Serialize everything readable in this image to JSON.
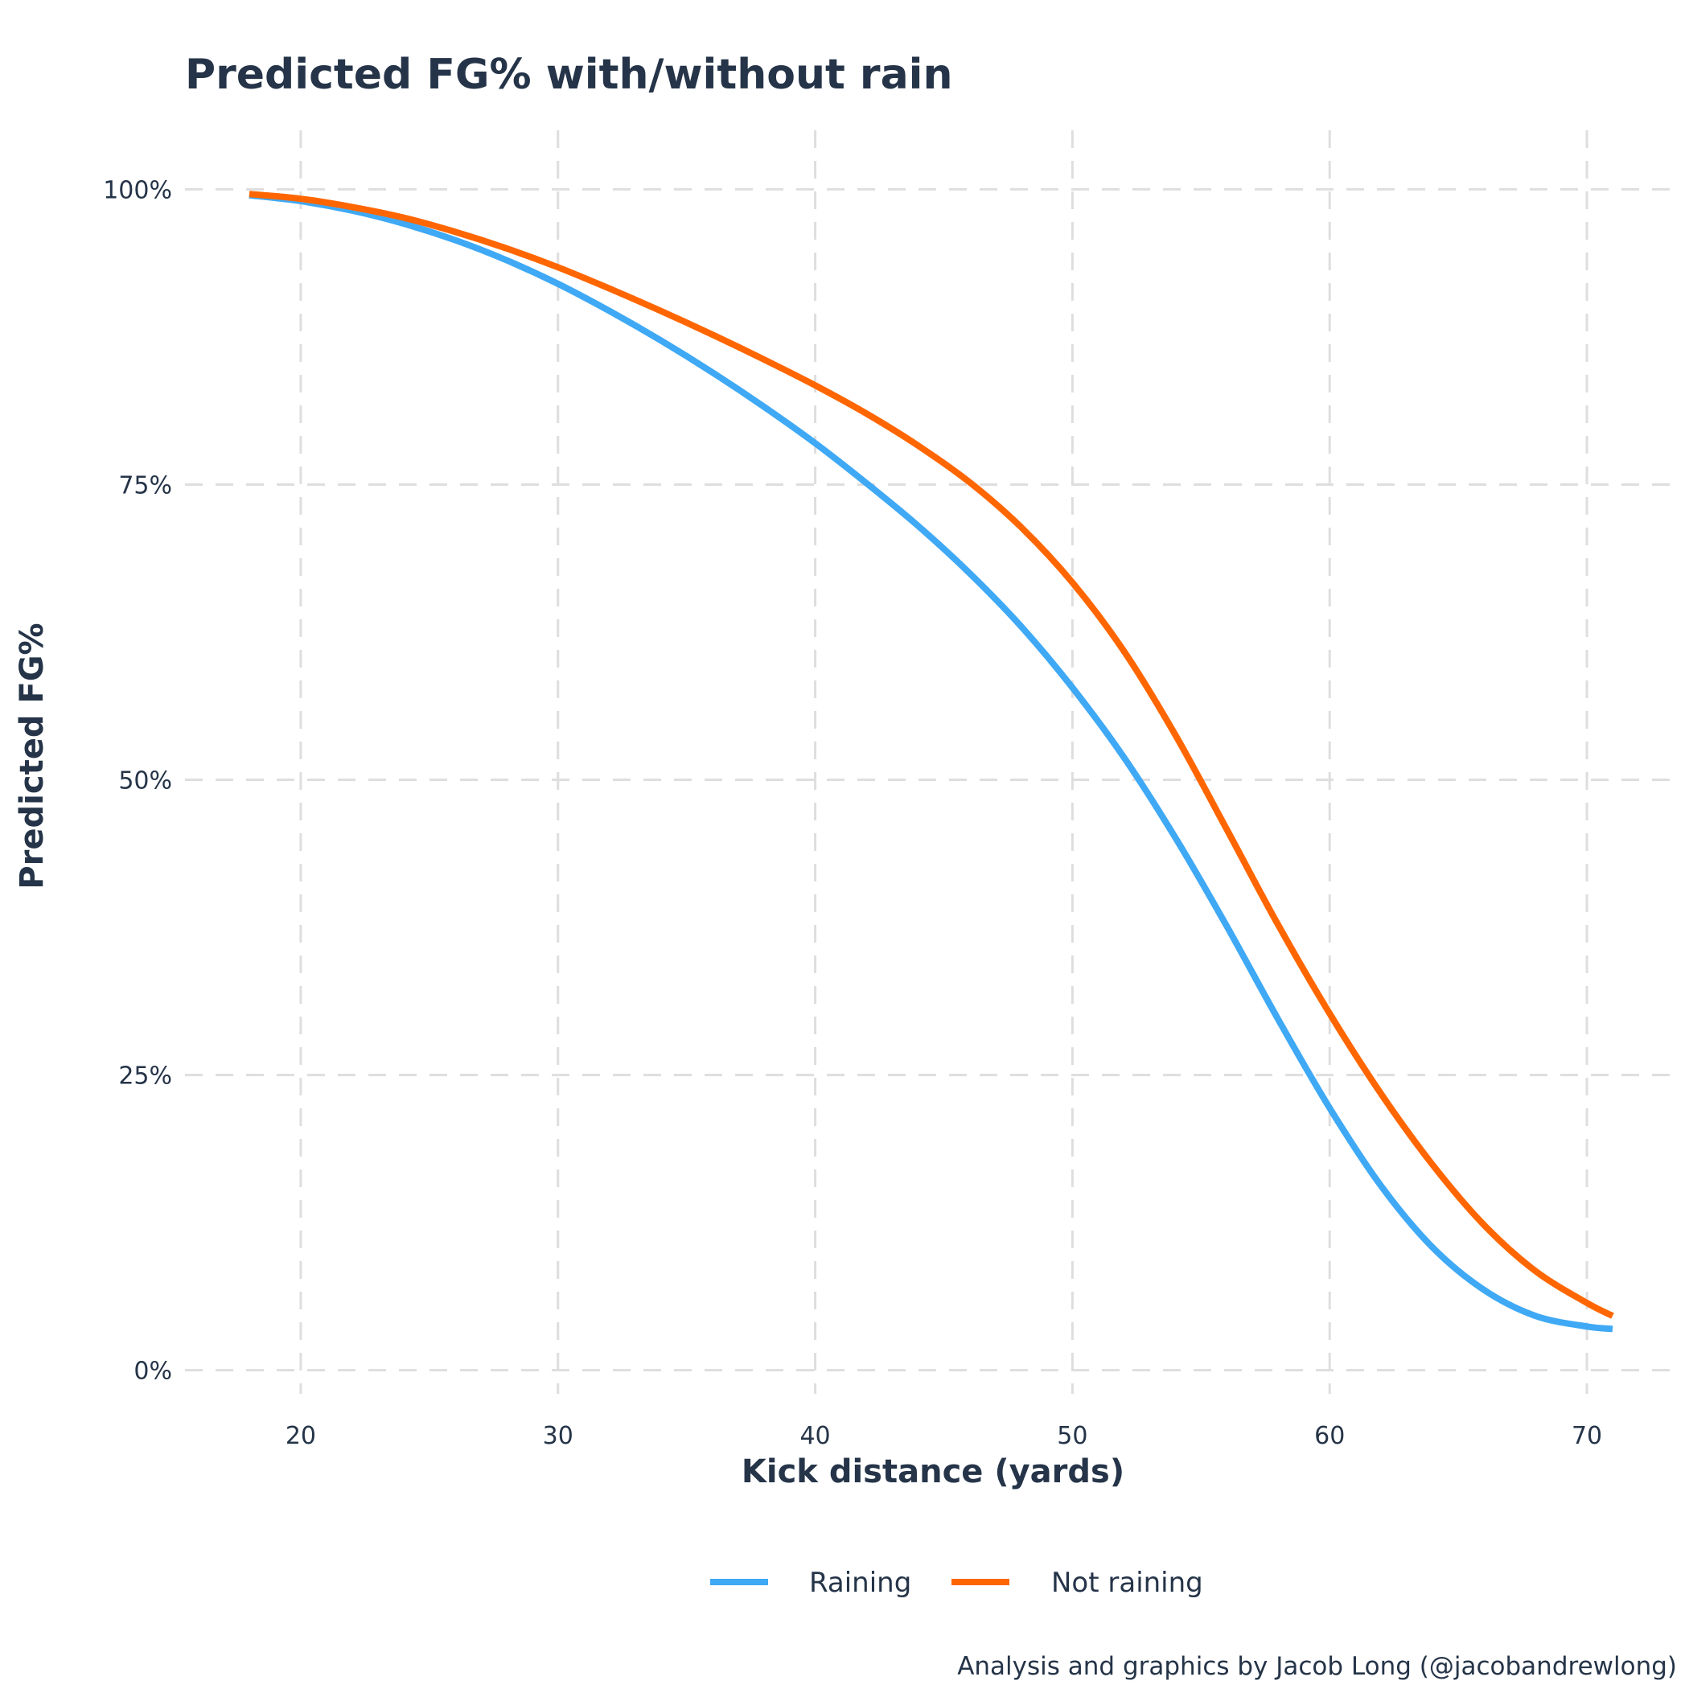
{
  "chart_data": {
    "type": "line",
    "title": "Predicted FG% with/without rain",
    "xlabel": "Kick distance (yards)",
    "ylabel": "Predicted FG%",
    "caption": "Analysis and graphics by Jacob Long (@jacobandrewlong)",
    "xlim": [
      15.5,
      73.5
    ],
    "ylim": [
      -0.02,
      1.05
    ],
    "x_ticks": [
      20,
      30,
      40,
      50,
      60,
      70
    ],
    "x_tick_labels": [
      "20",
      "30",
      "40",
      "50",
      "60",
      "70"
    ],
    "y_ticks": [
      0,
      0.25,
      0.5,
      0.75,
      1.0
    ],
    "y_tick_labels": [
      "0%",
      "25%",
      "50%",
      "75%",
      "100%"
    ],
    "grid": true,
    "legend_position": "bottom",
    "x": [
      18,
      20,
      22,
      24,
      26,
      28,
      30,
      32,
      34,
      36,
      38,
      40,
      42,
      44,
      46,
      48,
      50,
      52,
      54,
      56,
      58,
      60,
      62,
      64,
      66,
      68,
      70,
      71
    ],
    "series": [
      {
        "name": "Raining",
        "color": "#3fa9f5",
        "values": [
          0.995,
          0.99,
          0.982,
          0.971,
          0.957,
          0.94,
          0.92,
          0.897,
          0.872,
          0.845,
          0.816,
          0.785,
          0.751,
          0.715,
          0.675,
          0.63,
          0.578,
          0.519,
          0.451,
          0.376,
          0.297,
          0.222,
          0.156,
          0.104,
          0.068,
          0.046,
          0.037,
          0.035
        ]
      },
      {
        "name": "Not raining",
        "color": "#ff6600",
        "values": [
          0.996,
          0.992,
          0.985,
          0.976,
          0.964,
          0.95,
          0.934,
          0.916,
          0.897,
          0.877,
          0.856,
          0.834,
          0.81,
          0.783,
          0.752,
          0.714,
          0.667,
          0.609,
          0.538,
          0.458,
          0.377,
          0.302,
          0.234,
          0.174,
          0.123,
          0.084,
          0.057,
          0.046
        ]
      }
    ]
  }
}
